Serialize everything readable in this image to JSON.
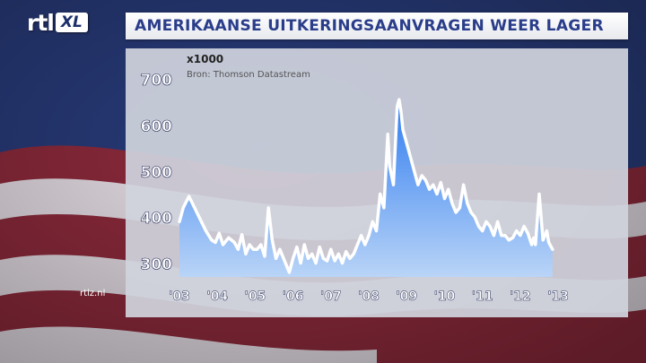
{
  "brand": {
    "logo_text": "rtl",
    "logo_badge": "XL",
    "watermark": "rtlz.nl"
  },
  "headline": "AMERIKAANSE UITKERINGSAANVRAGEN WEER LAGER",
  "colors": {
    "accent_blue": "#2a3d8a",
    "area_top": "#2f7cf0",
    "area_bottom": "#b9d4f7",
    "line": "#ffffff",
    "panel": "#d0d3dd"
  },
  "chart_data": {
    "type": "area",
    "unit_label": "x1000",
    "source": "Bron: Thomson Datastream",
    "ylim": [
      270,
      700
    ],
    "yticks": [
      300,
      400,
      500,
      600,
      700
    ],
    "xlim": [
      2003.0,
      2012.95
    ],
    "xticks": [
      {
        "x": 2003,
        "label": "'03"
      },
      {
        "x": 2004,
        "label": "'04"
      },
      {
        "x": 2005,
        "label": "'05"
      },
      {
        "x": 2006,
        "label": "'06"
      },
      {
        "x": 2007,
        "label": "'07"
      },
      {
        "x": 2008,
        "label": "'08"
      },
      {
        "x": 2009,
        "label": "'09"
      },
      {
        "x": 2010,
        "label": "'10"
      },
      {
        "x": 2011,
        "label": "'11"
      },
      {
        "x": 2012,
        "label": "'12"
      },
      {
        "x": 2013,
        "label": "'13"
      }
    ],
    "grid": false,
    "legend": "none",
    "series": [
      {
        "x": [
          2003.0,
          2003.1,
          2003.25,
          2003.4,
          2003.55,
          2003.7,
          2003.85,
          2003.95,
          2004.05,
          2004.15,
          2004.3,
          2004.45,
          2004.55,
          2004.65,
          2004.75,
          2004.85,
          2004.95,
          2005.05,
          2005.15,
          2005.25,
          2005.35,
          2005.45,
          2005.55,
          2005.65,
          2005.75,
          2005.85,
          2005.9,
          2006.0,
          2006.1,
          2006.2,
          2006.3,
          2006.4,
          2006.5,
          2006.6,
          2006.7,
          2006.8,
          2006.9,
          2007.0,
          2007.1,
          2007.2,
          2007.3,
          2007.4,
          2007.5,
          2007.6,
          2007.7,
          2007.8,
          2007.9,
          2008.0,
          2008.1,
          2008.2,
          2008.3,
          2008.4,
          2008.5,
          2008.55,
          2008.65,
          2008.75,
          2008.8,
          2008.85,
          2008.9,
          2009.0,
          2009.1,
          2009.2,
          2009.3,
          2009.4,
          2009.5,
          2009.6,
          2009.7,
          2009.8,
          2009.9,
          2010.0,
          2010.1,
          2010.2,
          2010.3,
          2010.4,
          2010.5,
          2010.6,
          2010.7,
          2010.8,
          2010.9,
          2011.0,
          2011.1,
          2011.2,
          2011.3,
          2011.4,
          2011.5,
          2011.6,
          2011.7,
          2011.8,
          2011.9,
          2012.0,
          2012.1,
          2012.2,
          2012.3,
          2012.35,
          2012.4,
          2012.5,
          2012.6,
          2012.7,
          2012.75,
          2012.85
        ],
        "y": [
          390,
          420,
          445,
          420,
          395,
          370,
          350,
          345,
          365,
          340,
          355,
          345,
          330,
          362,
          320,
          340,
          330,
          330,
          340,
          315,
          420,
          350,
          310,
          330,
          310,
          290,
          280,
          310,
          335,
          300,
          340,
          310,
          320,
          300,
          335,
          310,
          305,
          330,
          305,
          320,
          300,
          325,
          310,
          320,
          340,
          360,
          340,
          360,
          390,
          370,
          450,
          420,
          580,
          510,
          470,
          640,
          655,
          630,
          590,
          560,
          530,
          500,
          470,
          490,
          480,
          460,
          470,
          450,
          475,
          440,
          460,
          430,
          410,
          420,
          470,
          430,
          410,
          400,
          380,
          370,
          390,
          380,
          360,
          390,
          360,
          360,
          350,
          355,
          370,
          360,
          380,
          365,
          340,
          355,
          340,
          450,
          350,
          370,
          345,
          330
        ]
      }
    ]
  }
}
